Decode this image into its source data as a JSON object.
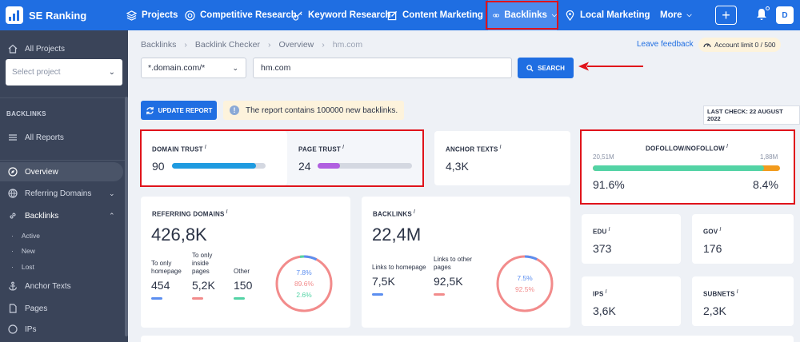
{
  "brand": {
    "name": "SE Ranking"
  },
  "nav": {
    "projects": "Projects",
    "competitive": "Competitive Research",
    "keyword": "Keyword Research",
    "content": "Content Marketing",
    "backlinks": "Backlinks",
    "local": "Local Marketing",
    "more": "More",
    "plus": "+",
    "avatar": "D"
  },
  "sidebar": {
    "all_projects": "All Projects",
    "select_placeholder": "Select project",
    "section": "BACKLINKS",
    "all_reports": "All Reports",
    "overview": "Overview",
    "referring_domains": "Referring Domains",
    "backlinks": "Backlinks",
    "sub_active": "Active",
    "sub_new": "New",
    "sub_lost": "Lost",
    "anchor_texts": "Anchor Texts",
    "pages": "Pages",
    "ips": "IPs"
  },
  "breadcrumb": {
    "b1": "Backlinks",
    "b2": "Backlink Checker",
    "b3": "Overview",
    "b4": "hm.com"
  },
  "header": {
    "feedback": "Leave feedback",
    "limit": "Account limit 0 / 500"
  },
  "search": {
    "mode": "*.domain.com/*",
    "query": "hm.com",
    "button": "SEARCH"
  },
  "report": {
    "update": "UPDATE REPORT",
    "notice": "The report contains 100000 new backlinks.",
    "last_check": "LAST CHECK: 22 AUGUST 2022"
  },
  "metrics": {
    "domain_trust": {
      "label": "DOMAIN TRUST",
      "value": "90",
      "fraction": 0.9
    },
    "page_trust": {
      "label": "PAGE TRUST",
      "value": "24",
      "fraction": 0.24
    },
    "anchor_texts": {
      "label": "ANCHOR TEXTS",
      "value": "4,3K"
    },
    "dofollow": {
      "label": "DOFOLLOW/NOFOLLOW",
      "left_count": "20,51M",
      "right_count": "1,88M",
      "left_pct": "91.6%",
      "right_pct": "8.4%",
      "fraction": 0.916
    },
    "referring_domains": {
      "label": "REFERRING DOMAINS",
      "value": "426,8K",
      "homepage_label": "To only homepage",
      "homepage_value": "454",
      "inside_label": "To only inside pages",
      "inside_value": "5,2K",
      "other_label": "Other",
      "other_value": "150",
      "pct_a": "7.8%",
      "pct_b": "89.6%",
      "pct_c": "2.6%"
    },
    "backlinks": {
      "label": "BACKLINKS",
      "value": "22,4M",
      "homepage_label": "Links to homepage",
      "homepage_value": "7,5K",
      "other_label": "Links to other pages",
      "other_value": "92,5K",
      "pct_a": "7.5%",
      "pct_b": "92.5%"
    },
    "edu": {
      "label": "EDU",
      "value": "373"
    },
    "gov": {
      "label": "GOV",
      "value": "176"
    },
    "ips": {
      "label": "IPS",
      "value": "3,6K"
    },
    "subnets": {
      "label": "SUBNETS",
      "value": "2,3K"
    }
  },
  "colors": {
    "brand_blue": "#1f6ee2",
    "highlight_red": "#e0131b",
    "series_blue": "#5b8ef0",
    "series_red": "#f28b8b",
    "series_green": "#53d3a5",
    "series_purple": "#b05fe0",
    "series_orange": "#f29b1d"
  }
}
